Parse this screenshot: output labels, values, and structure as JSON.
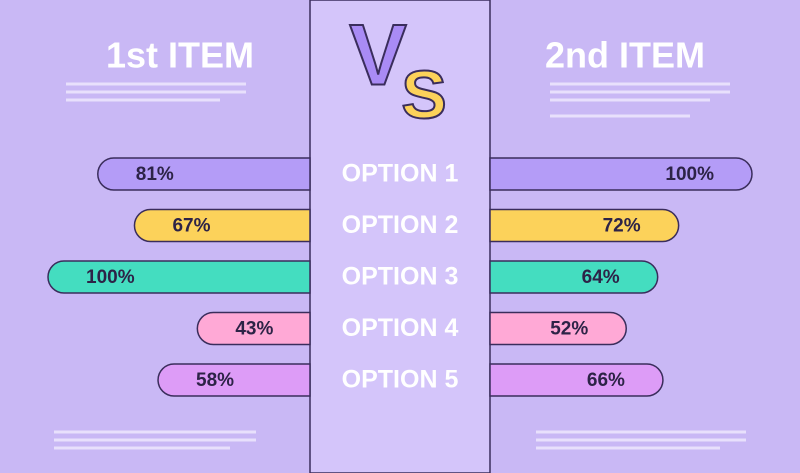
{
  "chart_data": {
    "type": "bar",
    "center_label": [
      "V",
      "S"
    ],
    "categories": [
      "OPTION 1",
      "OPTION 2",
      "OPTION 3",
      "OPTION 4",
      "OPTION 5"
    ],
    "colors": [
      "#b49cf7",
      "#fcd25a",
      "#44ddc0",
      "#ffa9d6",
      "#dd9cf7"
    ],
    "series": [
      {
        "name": "1st ITEM",
        "values": [
          81,
          67,
          100,
          43,
          58
        ],
        "value_labels": [
          "81%",
          "67%",
          "100%",
          "43%",
          "58%"
        ]
      },
      {
        "name": "2nd ITEM",
        "values": [
          100,
          72,
          64,
          52,
          66
        ],
        "value_labels": [
          "100%",
          "72%",
          "64%",
          "52%",
          "66%"
        ]
      }
    ],
    "xlim": [
      0,
      100
    ]
  }
}
